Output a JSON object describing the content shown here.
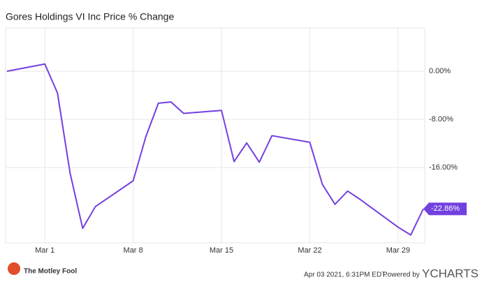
{
  "chart_data": {
    "type": "line",
    "title": "Gores Holdings VI Inc Price % Change",
    "x": [
      "2021-02-26",
      "2021-03-01",
      "2021-03-02",
      "2021-03-03",
      "2021-03-04",
      "2021-03-05",
      "2021-03-08",
      "2021-03-09",
      "2021-03-10",
      "2021-03-11",
      "2021-03-12",
      "2021-03-15",
      "2021-03-16",
      "2021-03-17",
      "2021-03-18",
      "2021-03-19",
      "2021-03-22",
      "2021-03-23",
      "2021-03-24",
      "2021-03-25",
      "2021-03-26",
      "2021-03-29",
      "2021-03-30",
      "2021-03-31"
    ],
    "series": [
      {
        "name": "Gores Holdings VI Inc",
        "color": "#7340e0",
        "values": [
          0,
          1.2,
          -3.6,
          -16.9,
          -26.1,
          -22.5,
          -18.2,
          -10.9,
          -5.3,
          -5.1,
          -7.0,
          -6.5,
          -15.0,
          -11.9,
          -15.1,
          -10.7,
          -11.8,
          -18.8,
          -22.1,
          -19.9,
          -21.3,
          -25.9,
          -27.2,
          -22.86
        ],
        "value_labels": [
          null,
          null,
          null,
          null,
          null,
          null,
          null,
          null,
          null,
          null,
          null,
          null,
          null,
          null,
          null,
          null,
          null,
          null,
          null,
          null,
          null,
          null,
          null,
          "-22.86%"
        ]
      }
    ],
    "xlim": [
      "2021-02-26",
      "2021-03-31"
    ],
    "xticks": [
      {
        "value": "2021-03-01",
        "label": "Mar 1"
      },
      {
        "value": "2021-03-08",
        "label": "Mar 8"
      },
      {
        "value": "2021-03-15",
        "label": "Mar 15"
      },
      {
        "value": "2021-03-22",
        "label": "Mar 22"
      },
      {
        "value": "2021-03-29",
        "label": "Mar 29"
      }
    ],
    "ylim": [
      -28.5,
      7.2
    ],
    "yticks": [
      {
        "value": 0,
        "label": "0.00%"
      },
      {
        "value": -8,
        "label": "-8.00%"
      },
      {
        "value": -16,
        "label": "-16.00%"
      }
    ],
    "grid": true,
    "footer": {
      "brand": "The Motley Fool",
      "timestamp": "Apr 03 2021, 6:31PM EDT.",
      "powered": "Powered by",
      "provider": "YCHARTS"
    }
  }
}
